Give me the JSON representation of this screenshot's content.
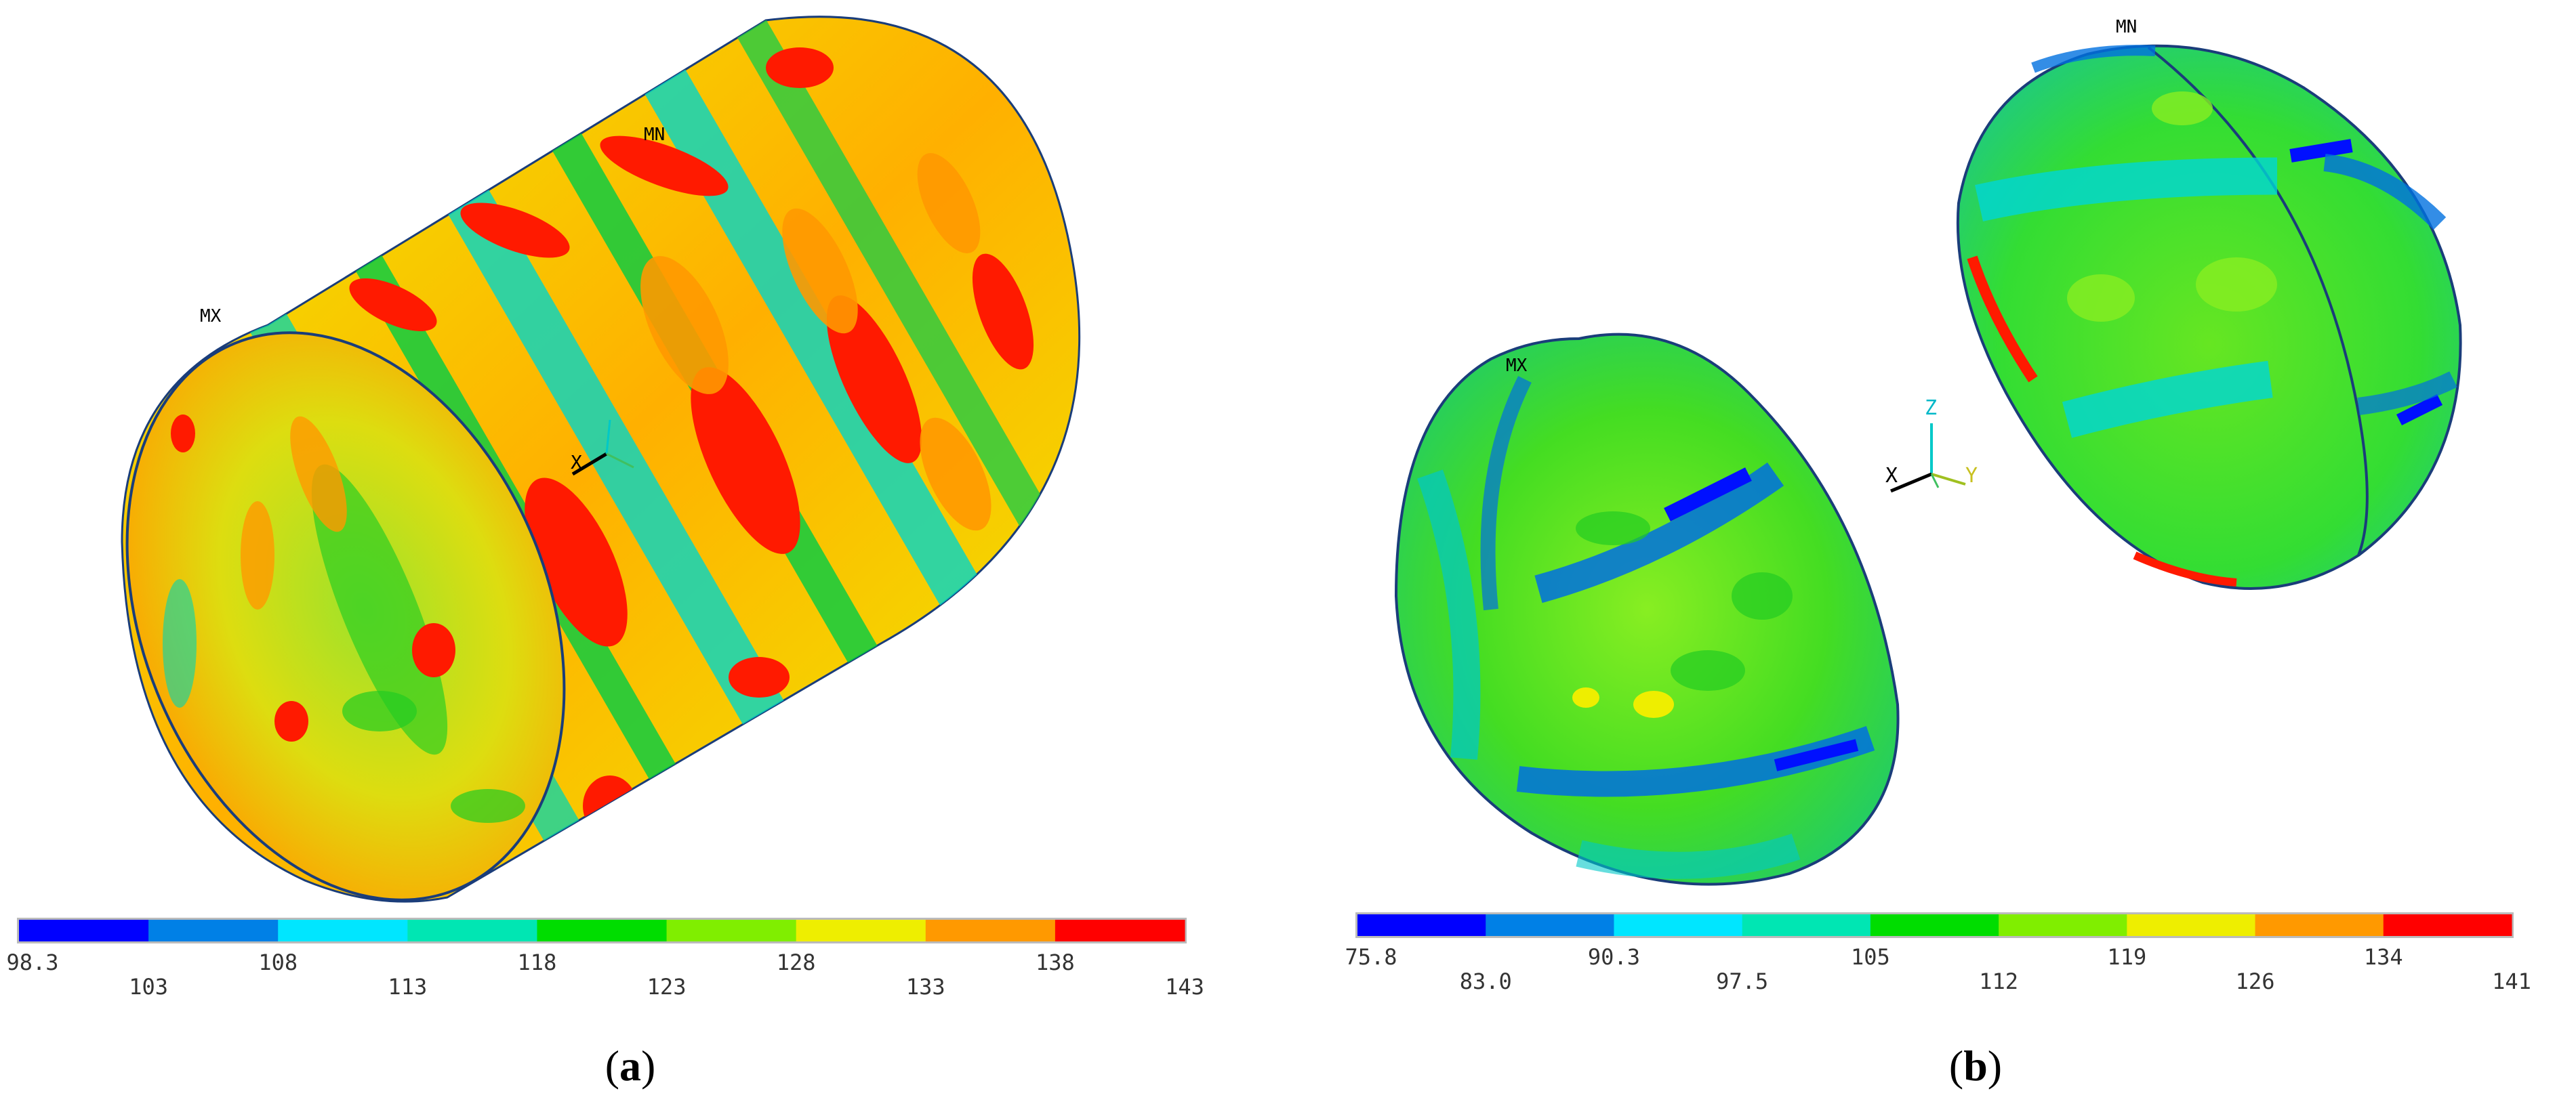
{
  "panels": [
    {
      "id": "a",
      "caption": "(a)",
      "caption_letter": "a",
      "marker_max": "MX",
      "marker_min": "MN",
      "axis_labels": [
        "X"
      ],
      "legend": {
        "colors": [
          "#0000ff",
          "#0080e6",
          "#00e6ff",
          "#00e6b3",
          "#00dd00",
          "#80ee00",
          "#eeee00",
          "#ff9900",
          "#ff0000"
        ],
        "ticks": [
          "98.3",
          "103",
          "108",
          "113",
          "118",
          "123",
          "128",
          "133",
          "138",
          "143"
        ]
      }
    },
    {
      "id": "b",
      "caption": "(b)",
      "caption_letter": "b",
      "marker_max": "MX",
      "marker_min": "MN",
      "axis_labels": [
        "Z",
        "X",
        "Y"
      ],
      "legend": {
        "colors": [
          "#0000ff",
          "#0080e6",
          "#00e6ff",
          "#00e6b3",
          "#00dd00",
          "#80ee00",
          "#eeee00",
          "#ff9900",
          "#ff0000"
        ],
        "ticks": [
          "75.8",
          "83.0",
          "90.3",
          "97.5",
          "105",
          "112",
          "119",
          "126",
          "134",
          "141"
        ]
      }
    }
  ]
}
